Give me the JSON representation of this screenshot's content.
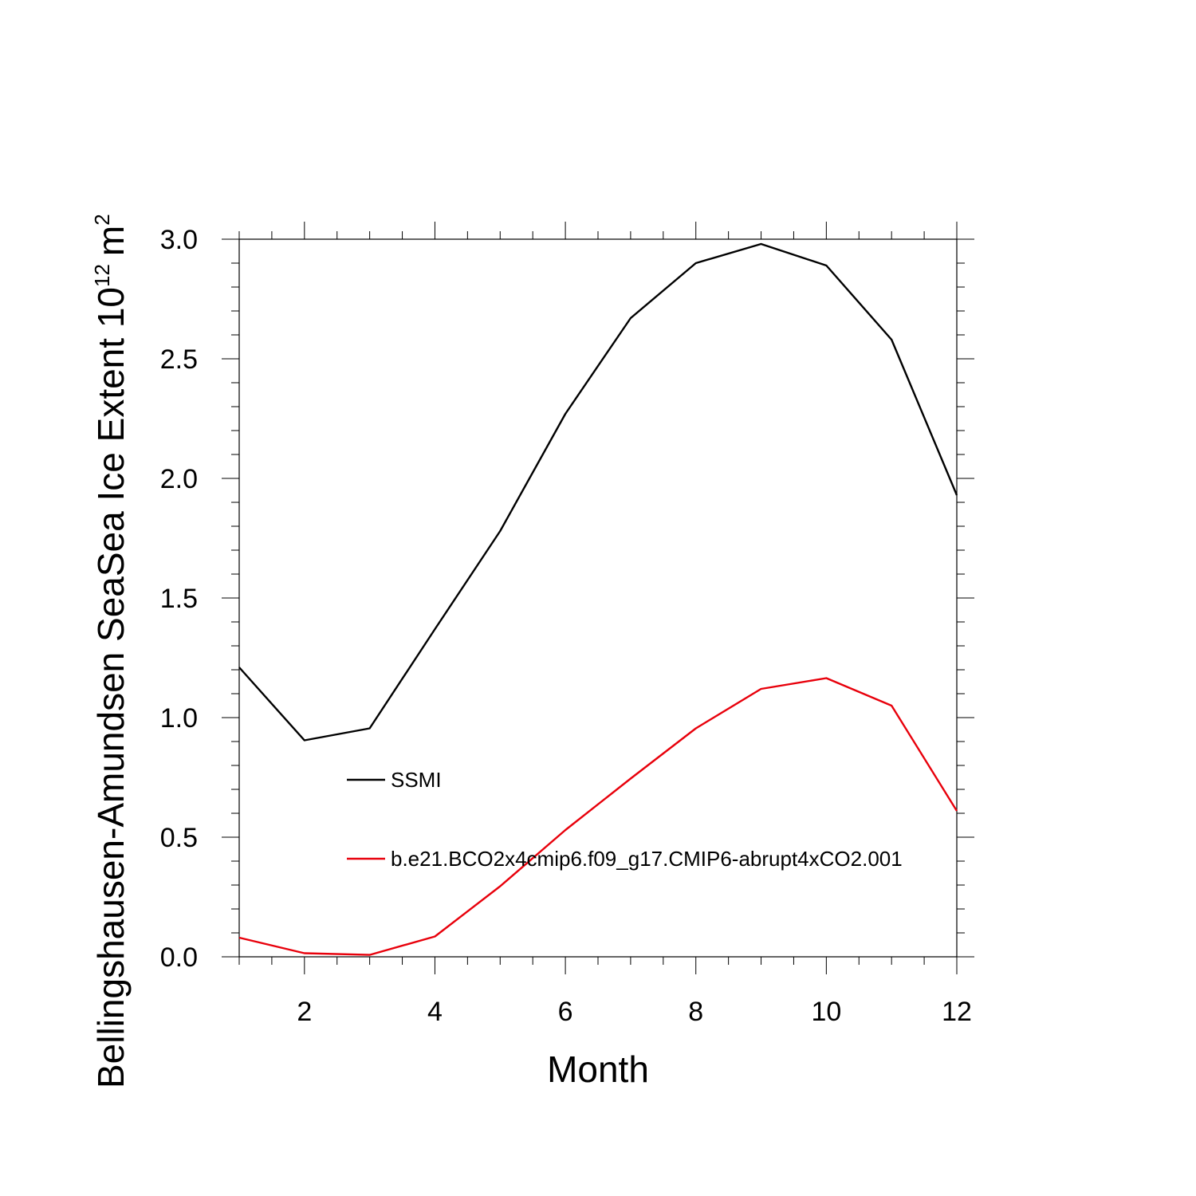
{
  "chart_data": {
    "type": "line",
    "title": "",
    "xlabel": "Month",
    "ylabel": "Bellingshausen-Amundsen SeaSea Ice Extent 10",
    "ylabel_superscript_exponent": "12",
    "ylabel_unit": "m",
    "ylabel_unit_superscript": "2",
    "xlim": [
      1,
      12
    ],
    "ylim": [
      0,
      3
    ],
    "x": [
      1,
      2,
      3,
      4,
      5,
      6,
      7,
      8,
      9,
      10,
      11,
      12
    ],
    "x_tick_values": [
      2,
      4,
      6,
      8,
      10,
      12
    ],
    "x_tick_labels": [
      "2",
      "4",
      "6",
      "8",
      "10",
      "12"
    ],
    "y_tick_values": [
      0,
      0.5,
      1,
      1.5,
      2,
      2.5,
      3
    ],
    "y_tick_labels": [
      "0.0",
      "0.5",
      "1.0",
      "1.5",
      "2.0",
      "2.5",
      "3.0"
    ],
    "grid": false,
    "legend_position": "inside-left",
    "series": [
      {
        "name": "SSMI",
        "color": "#000000",
        "values": [
          1.21,
          0.905,
          0.955,
          1.37,
          1.78,
          2.27,
          2.67,
          2.9,
          2.98,
          2.89,
          2.58,
          1.93
        ]
      },
      {
        "name": "b.e21.BCO2x4cmip6.f09_g17.CMIP6-abrupt4xCO2.001",
        "color": "#e8000b",
        "values": [
          0.08,
          0.015,
          0.008,
          0.085,
          0.295,
          0.53,
          0.745,
          0.955,
          1.12,
          1.165,
          1.05,
          0.61
        ]
      }
    ]
  }
}
